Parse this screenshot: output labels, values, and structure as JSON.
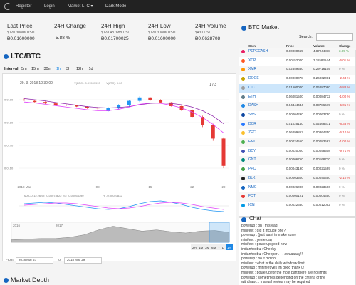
{
  "nav": {
    "links": [
      "Register",
      "Login",
      "Market LTC ▾",
      "Dark Mode"
    ]
  },
  "stats": [
    {
      "label": "Last Price",
      "usd": "$120.30806 USD",
      "btc": "Ƀ0.01600000"
    },
    {
      "label": "24H Change",
      "btc": "-5.88 %"
    },
    {
      "label": "24H High",
      "usd": "$128.487888 USD",
      "btc": "Ƀ0.01700025"
    },
    {
      "label": "24H Low",
      "usd": "$120.30806 USD",
      "btc": "Ƀ0.01600000"
    },
    {
      "label": "24H Volume",
      "usd": "$430 USD",
      "btc": "Ƀ0.0628708"
    }
  ],
  "market": {
    "title": "LTC/BTC",
    "interval_label": "Interval:",
    "intervals": [
      "5m",
      "15m",
      "30m",
      "1h",
      "3h",
      "12h",
      "1d"
    ],
    "active_interval": "1h",
    "from_label": "From:",
    "from": "2018 Mar 27",
    "to_label": "To:",
    "to": "2018 Mar 29",
    "depth_title": "Market Depth"
  },
  "chart": {
    "timestamp": "29. 3. 2018 10:30:00",
    "legend": [
      "V(BTC): 0.01599993",
      "V(LTC): 0.00"
    ],
    "page": "1 / 3",
    "up_color": "#2196f3",
    "down_color": "#e53935",
    "ylim": [
      0.0155,
      0.0195
    ],
    "yticks": [
      {
        "value": 0.016,
        "label": "0.0160"
      },
      {
        "value": 0.017,
        "label": "0.0170"
      },
      {
        "value": 0.018,
        "label": "0.0180"
      },
      {
        "value": 0.019,
        "label": "0.0190"
      }
    ],
    "categories": [
      "2018 Mar",
      null,
      null,
      null,
      null,
      null,
      null,
      "08",
      null,
      null,
      null,
      null,
      "15",
      null,
      null,
      null,
      "22",
      null,
      null,
      "29"
    ],
    "candles": {
      "open": [
        0.019,
        0.01895,
        0.0189,
        0.01884,
        0.01878,
        0.01875,
        0.0187,
        0.01865,
        0.0185,
        0.01862,
        0.01878,
        0.01895,
        0.0191,
        0.019,
        0.01888,
        0.01872,
        0.01855,
        0.01825,
        0.0179,
        0.0173
      ],
      "high": [
        0.01905,
        0.01898,
        0.01893,
        0.01886,
        0.0188,
        0.01878,
        0.01872,
        0.01868,
        0.01868,
        0.0188,
        0.019,
        0.01915,
        0.01912,
        0.01902,
        0.0189,
        0.01875,
        0.01858,
        0.0183,
        0.01795,
        0.01735
      ],
      "low": [
        0.01895,
        0.01888,
        0.0188,
        0.01875,
        0.01872,
        0.01868,
        0.0186,
        0.01858,
        0.01848,
        0.01858,
        0.0187,
        0.0189,
        0.01895,
        0.01885,
        0.0187,
        0.0185,
        0.0182,
        0.0178,
        0.0172,
        0.016
      ],
      "close": [
        0.01898,
        0.0189,
        0.01884,
        0.01878,
        0.01875,
        0.0187,
        0.01865,
        0.01862,
        0.01865,
        0.01878,
        0.01895,
        0.0191,
        0.019,
        0.01888,
        0.01872,
        0.01855,
        0.01825,
        0.0179,
        0.0173,
        0.0161
      ]
    },
    "series": [
      {
        "name": "MA",
        "color": "#8e24aa",
        "values": [
          0.01905,
          0.019,
          0.01895,
          0.01888,
          0.01882,
          0.01876,
          0.0187,
          0.01866,
          0.01864,
          0.01866,
          0.0187,
          0.01878,
          0.01884,
          0.01886,
          0.01884,
          0.01878,
          0.01868,
          0.01852,
          0.01828,
          0.01795
        ]
      },
      {
        "name": "EMA",
        "color": "#e040fb",
        "values": [
          0.0189,
          0.01886,
          0.0188,
          0.01874,
          0.01868,
          0.01862,
          0.01856,
          0.01852,
          0.01852,
          0.01858,
          0.01868,
          0.0188,
          0.01886,
          0.01884,
          0.01876,
          0.01864,
          0.01846,
          0.01822,
          0.01792,
          0.01755
        ]
      }
    ],
    "macd_legend": [
      "MACD(12,26,9): -0.00078622",
      "SI: -0.00054790",
      "H: -0.00023832"
    ],
    "macd_ylim": [
      -0.001,
      0.001
    ],
    "macd": [
      {
        "color": "#2196f3",
        "values": [
          0.0003,
          0.0004,
          0.0005,
          0.0004,
          0.0002,
          0,
          -0.0002,
          -0.0004,
          -0.0005,
          -0.0004,
          -0.0001,
          0.0003,
          0.0006,
          0.0007,
          0.0005,
          0.0002,
          -0.0002,
          -0.0005,
          -0.0007,
          -0.0008
        ]
      },
      {
        "color": "#e040fb",
        "values": [
          0.0001,
          0.0002,
          0.0003,
          0.0004,
          0.0004,
          0.0003,
          0.0001,
          -0.0001,
          -0.0003,
          -0.0004,
          -0.0003,
          -0.0001,
          0.0002,
          0.0004,
          0.0005,
          0.0004,
          0.0002,
          -0.0001,
          -0.0003,
          -0.0005
        ]
      }
    ],
    "nav_labels": [
      "2016",
      "2017"
    ],
    "nav_ylim": [
      0,
      0.03
    ],
    "navigator": [
      0.004,
      0.005,
      0.006,
      0.006,
      0.008,
      0.012,
      0.02,
      0.026,
      0.022,
      0.018,
      0.02,
      0.017,
      0.015,
      0.018,
      0.019,
      0.016
    ],
    "zoom": [
      "2H",
      "1M",
      "3M",
      "6M",
      "YTD",
      "1Y"
    ],
    "active_zoom": "1Y"
  },
  "table": {
    "title": "BTC Market",
    "search_label": "Search:",
    "selected": "LTC",
    "columns": [
      "Coin",
      "Price",
      "Volume",
      "Change"
    ],
    "rows": [
      {
        "icon": "#e91e63",
        "coin": "PEPECASH",
        "price": "0.00000465",
        "volume": "4.87244818",
        "change": "3.99 %"
      },
      {
        "icon": "#ff5722",
        "coin": "XCP",
        "price": "0.00152000",
        "volume": "3.11583544",
        "change": "-6.01 %"
      },
      {
        "icon": "#ff9800",
        "coin": "XMR",
        "price": "0.02559550",
        "volume": "0.29716105",
        "change": "0 %"
      },
      {
        "icon": "#c8a400",
        "coin": "DOGE",
        "price": "0.00000078",
        "volume": "0.26062081",
        "change": "-2.44 %"
      },
      {
        "icon": "#9e9e9e",
        "coin": "LTC",
        "price": "0.01600000",
        "volume": "0.06287080",
        "change": "-5.88 %"
      },
      {
        "icon": "#607d8b",
        "coin": "ETH",
        "price": "0.06081500",
        "volume": "0.00084732",
        "change": "-1.00 %"
      },
      {
        "icon": "#1e88e5",
        "coin": "DASH",
        "price": "0.04444444",
        "volume": "0.03786679",
        "change": "-5.01 %"
      },
      {
        "icon": "#0d47a1",
        "coin": "SYS",
        "price": "0.00004290",
        "volume": "0.00063790",
        "change": "0 %"
      },
      {
        "icon": "#2979ff",
        "coin": "DCR",
        "price": "0.01025140",
        "volume": "0.02468671",
        "change": "-8.33 %"
      },
      {
        "icon": "#fbc02d",
        "coin": "ZEC",
        "price": "0.06299862",
        "volume": "0.00864350",
        "change": "-6.10 %"
      },
      {
        "icon": "#4caf50",
        "coin": "EMC",
        "price": "0.00024550",
        "volume": "0.00083662",
        "change": "-1.00 %"
      },
      {
        "icon": "#3f51b5",
        "coin": "BCY",
        "price": "0.00020000",
        "volume": "0.00058508",
        "change": "-9.71 %"
      },
      {
        "icon": "#00897b",
        "coin": "GNT",
        "price": "0.00006750",
        "volume": "0.00168720",
        "change": "0 %"
      },
      {
        "icon": "#43a047",
        "coin": "PPC",
        "price": "0.00043190",
        "volume": "0.00021599",
        "change": "0 %"
      },
      {
        "icon": "#212121",
        "coin": "BLK",
        "price": "0.00003500",
        "volume": "0.00040350",
        "change": "-2.10 %"
      },
      {
        "icon": "#1565c0",
        "coin": "NMC",
        "price": "0.00026000",
        "volume": "0.00023506",
        "change": "0 %"
      },
      {
        "icon": "#e53935",
        "coin": "FOT",
        "price": "0.00000121",
        "volume": "0.00004350",
        "change": "0 %"
      },
      {
        "icon": "#039be5",
        "coin": "ICN",
        "price": "0.00022650",
        "volume": "0.00012052",
        "change": "0 %"
      }
    ]
  },
  "chat": {
    "title": "Chat",
    "messages": [
      "powerup : oh i misread",
      "minifeet : did it include one?",
      "powerup : (just want to make sure)",
      "minifeet : yesterday",
      "minifeet : powerup good now",
      "indianhoobu : Cheeky",
      "indianhoobu : Cheeper . . . awaaaaay!!!",
      "powerup : no it did not...",
      "minifeet : what is the daily withdraw limit",
      "powerup : minifeet yes im good thank u!",
      "minifeet : powerup for the most part there are no limits",
      "powerup : sometimes depending on the criteria of the",
      "withdraw ... manual review may be required"
    ]
  }
}
